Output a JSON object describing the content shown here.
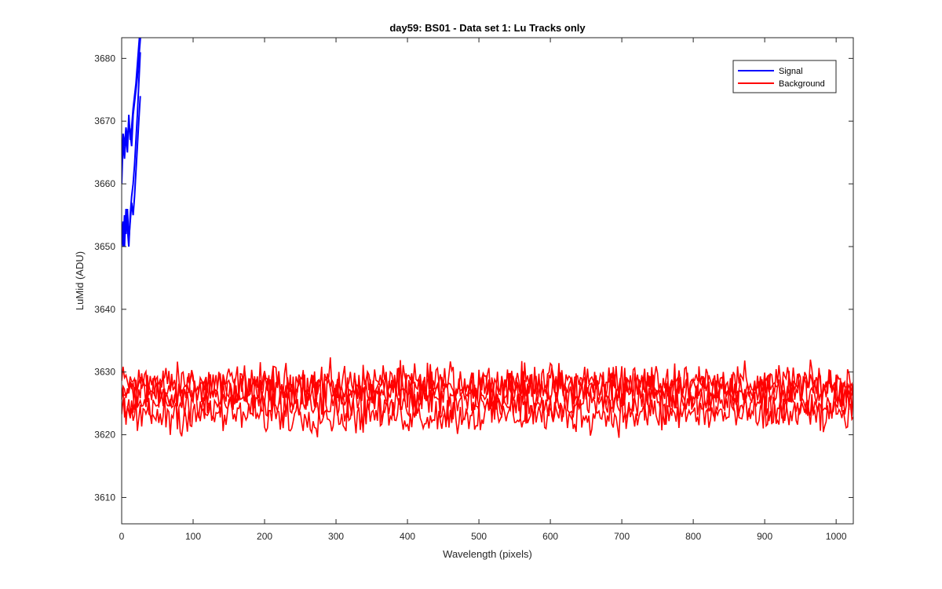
{
  "chart_data": {
    "type": "line",
    "title": "day59: BS01 - Data set 1: Lu Tracks only",
    "xlabel": "Wavelength (pixels)",
    "ylabel": "LuMid (ADU)",
    "xlim": [
      0,
      1024
    ],
    "ylim": [
      3605.8,
      3683.3
    ],
    "xticks": [
      0,
      100,
      200,
      300,
      400,
      500,
      600,
      700,
      800,
      900,
      1000
    ],
    "yticks": [
      3610,
      3620,
      3630,
      3640,
      3650,
      3660,
      3670,
      3680
    ],
    "grid": false,
    "legend_position": "top-right",
    "series": [
      {
        "name": "Signal",
        "color": "#0000ff",
        "traces": [
          {
            "x": [
              0,
              2,
              4,
              6,
              8,
              10,
              12,
              14,
              16,
              18,
              20,
              22,
              24,
              26,
              28
            ],
            "y": [
              3662,
              3668,
              3666,
              3669,
              3667,
              3670,
              3668,
              3666,
              3671,
              3673,
              3675,
              3677,
              3680,
              3683,
              3686
            ]
          },
          {
            "x": [
              0,
              2,
              4,
              6,
              8,
              10,
              12,
              14,
              16,
              18,
              20,
              22,
              24,
              26
            ],
            "y": [
              3660,
              3667,
              3664,
              3668,
              3665,
              3671,
              3667,
              3669,
              3672,
              3674,
              3676,
              3679,
              3682,
              3685
            ]
          },
          {
            "x": [
              0,
              2,
              4,
              6,
              8,
              10,
              12,
              14,
              16,
              18,
              20,
              22,
              24,
              26
            ],
            "y": [
              3653,
              3650,
              3655,
              3652,
              3656,
              3651,
              3654,
              3657,
              3655,
              3658,
              3662,
              3666,
              3670,
              3674
            ]
          },
          {
            "x": [
              0,
              2,
              4,
              6,
              8,
              10,
              12,
              14,
              16,
              18,
              20,
              22,
              24,
              26
            ],
            "y": [
              3651,
              3654,
              3650,
              3656,
              3653,
              3650,
              3655,
              3658,
              3660,
              3663,
              3667,
              3671,
              3676,
              3681
            ]
          }
        ]
      },
      {
        "name": "Background",
        "color": "#ff0000",
        "baselines": [
          3628.3,
          3627.6,
          3626.8,
          3624.9,
          3623.2
        ],
        "noise_amplitude": 2.5,
        "x_step": 2,
        "y_min": 3616.0,
        "y_max": 3633.2
      }
    ]
  },
  "legend": {
    "items": [
      {
        "label": "Signal",
        "color": "#0000ff"
      },
      {
        "label": "Background",
        "color": "#ff0000"
      }
    ]
  }
}
